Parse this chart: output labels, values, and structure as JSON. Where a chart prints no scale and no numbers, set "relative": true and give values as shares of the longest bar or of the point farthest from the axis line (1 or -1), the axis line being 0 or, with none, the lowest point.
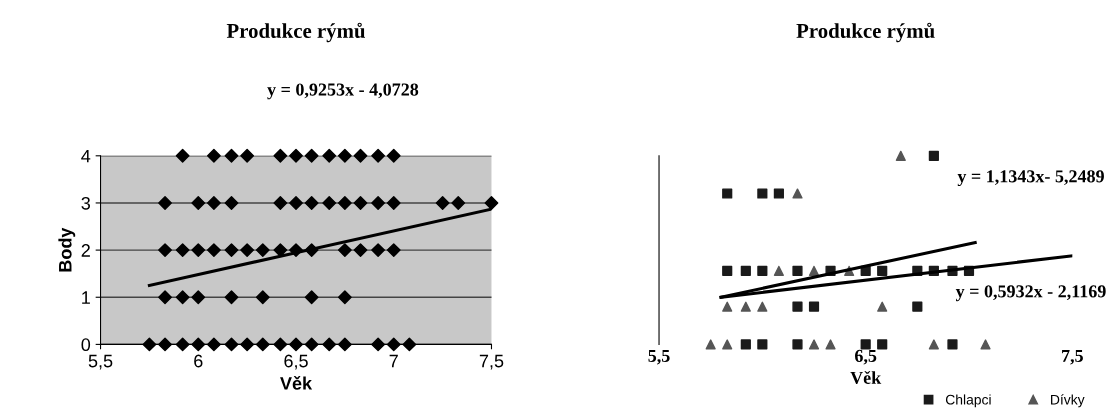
{
  "chart_data": [
    {
      "type": "scatter",
      "title": "Produkce rýmů",
      "xlabel": "Věk",
      "ylabel": "Body",
      "xlim": [
        5.5,
        7.5
      ],
      "ylim": [
        0,
        4
      ],
      "xticks": [
        {
          "value": 5.5,
          "label": "5,5"
        },
        6,
        {
          "value": 6.5,
          "label": "6,5"
        },
        7,
        {
          "value": 7.5,
          "label": "7,5"
        }
      ],
      "yticks": [
        0,
        1,
        2,
        3,
        4
      ],
      "grid": "y",
      "annotations": [
        "y = 0,9253x - 4,0728"
      ],
      "series": [
        {
          "marker": "diamond",
          "color": "#000000",
          "x": [
            5.83,
            6.0,
            6.08,
            6.17,
            6.42,
            6.5,
            6.58,
            6.67,
            6.75,
            6.83,
            6.92,
            7.0,
            7.25,
            7.33,
            7.5,
            5.83,
            5.92,
            6.0,
            6.08,
            6.17,
            6.25,
            6.33,
            6.42,
            6.5,
            6.58,
            6.75,
            6.83,
            6.92,
            7.0,
            5.83,
            5.92,
            6.0,
            6.17,
            6.33,
            6.58,
            6.75,
            5.75,
            5.83,
            5.92,
            6.0,
            6.08,
            6.17,
            6.25,
            6.33,
            6.42,
            6.5,
            6.58,
            6.67,
            6.75,
            6.92,
            7.0,
            7.08,
            5.92,
            6.08,
            6.17,
            6.25,
            6.42,
            6.5,
            6.58,
            6.67,
            6.75,
            6.83,
            6.92,
            7.0
          ],
          "values": [
            3,
            3,
            3,
            3,
            3,
            3,
            3,
            3,
            3,
            3,
            3,
            3,
            3,
            3,
            3,
            2,
            2,
            2,
            2,
            2,
            2,
            2,
            2,
            2,
            2,
            2,
            2,
            2,
            2,
            1,
            1,
            1,
            1,
            1,
            1,
            1,
            0,
            0,
            0,
            0,
            0,
            0,
            0,
            0,
            0,
            0,
            0,
            0,
            0,
            0,
            0,
            0,
            4,
            4,
            4,
            4,
            4,
            4,
            4,
            4,
            4,
            4,
            4,
            4
          ]
        },
        {
          "type": "line",
          "color": "#000000",
          "x": [
            5.75,
            7.5
          ],
          "values": [
            1.25,
            2.87
          ]
        }
      ]
    },
    {
      "type": "scatter",
      "title": "Produkce rýmů",
      "xlabel": "Věk",
      "xlim": [
        5.5,
        7.5
      ],
      "relative": true,
      "tick_labels": "x",
      "xticks": [
        {
          "value": 5.5,
          "label": "5,5"
        },
        {
          "value": 6.5,
          "label": "6,5"
        },
        {
          "value": 7.5,
          "label": "7,5"
        }
      ],
      "legend": "bottom right",
      "annotations": [
        "y = 1,1343x- 5,2489",
        "y = 0,5932x - 2,1169"
      ],
      "series": [
        {
          "name": "Chlapci",
          "marker": "square",
          "color": "#1a1a1a",
          "x": [
            5.92,
            6.0,
            6.17,
            6.5,
            6.58,
            6.92,
            6.17,
            6.25,
            6.75,
            5.83,
            5.92,
            6.0,
            6.17,
            6.33,
            6.5,
            6.58,
            6.75,
            6.83,
            6.92,
            7.0,
            5.83,
            6.0,
            6.08,
            6.83
          ],
          "values": [
            0,
            0,
            0,
            0,
            0,
            0,
            0.2,
            0.2,
            0.2,
            0.39,
            0.39,
            0.39,
            0.39,
            0.39,
            0.39,
            0.39,
            0.39,
            0.39,
            0.39,
            0.39,
            0.8,
            0.8,
            0.8,
            1
          ]
        },
        {
          "name": "Dívky",
          "marker": "triangle",
          "color": "#555555",
          "x": [
            5.75,
            5.83,
            6.25,
            6.33,
            6.83,
            7.08,
            5.83,
            5.92,
            6.0,
            6.58,
            6.08,
            6.25,
            6.42,
            6.17,
            6.67
          ],
          "values": [
            0,
            0,
            0,
            0,
            0,
            0,
            0.2,
            0.2,
            0.2,
            0.2,
            0.39,
            0.39,
            0.39,
            0.8,
            1
          ]
        },
        {
          "type": "line",
          "color": "#000000",
          "x": [
            5.8,
            7.03
          ],
          "values": [
            0.25,
            0.54
          ]
        },
        {
          "type": "line",
          "color": "#000000",
          "x": [
            5.8,
            7.5
          ],
          "values": [
            0.25,
            0.47
          ]
        }
      ]
    }
  ]
}
